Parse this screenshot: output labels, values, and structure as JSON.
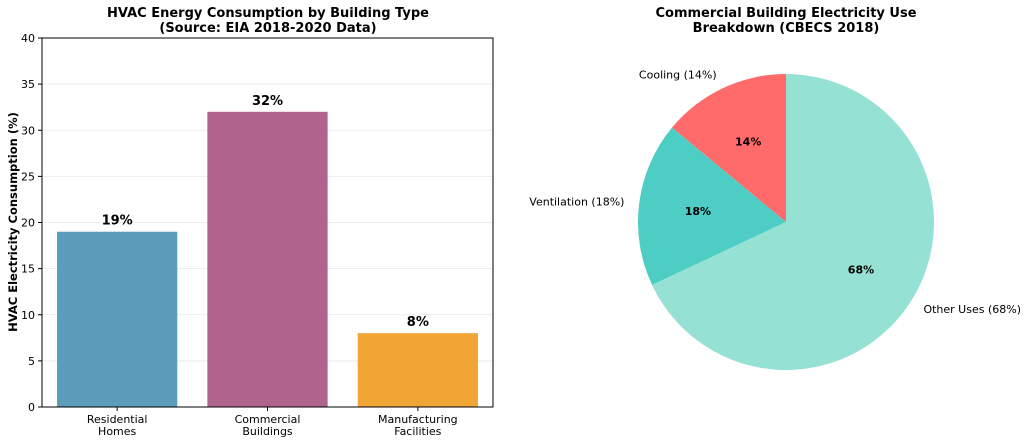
{
  "chart_data": [
    {
      "type": "bar",
      "title_lines": [
        "HVAC Energy Consumption by Building Type",
        "(Source: EIA 2018-2020 Data)"
      ],
      "ylabel": "HVAC Electricity Consumption (%)",
      "ylim": [
        0,
        40
      ],
      "yticks": [
        "0",
        "5",
        "10",
        "15",
        "20",
        "25",
        "30",
        "35",
        "40"
      ],
      "grid": true,
      "categories": [
        [
          "Residential",
          "Homes"
        ],
        [
          "Commercial",
          "Buildings"
        ],
        [
          "Manufacturing",
          "Facilities"
        ]
      ],
      "values": [
        19,
        32,
        8
      ],
      "data_labels": [
        "19%",
        "32%",
        "8%"
      ],
      "colors": [
        "#5b9dbb",
        "#b0638c",
        "#f0a535"
      ]
    },
    {
      "type": "pie",
      "title_lines": [
        "Commercial Building Electricity Use",
        "Breakdown (CBECS 2018)"
      ],
      "slices": [
        {
          "label": "Cooling (14%)",
          "value": 14,
          "pct": "14%",
          "color": "#ff6b6b"
        },
        {
          "label": "Ventilation (18%)",
          "value": 18,
          "pct": "18%",
          "color": "#4ecdc4"
        },
        {
          "label": "Other Uses (68%)",
          "value": 68,
          "pct": "68%",
          "color": "#95e1d3"
        }
      ],
      "start_angle": "top",
      "direction": "counterclockwise"
    }
  ]
}
